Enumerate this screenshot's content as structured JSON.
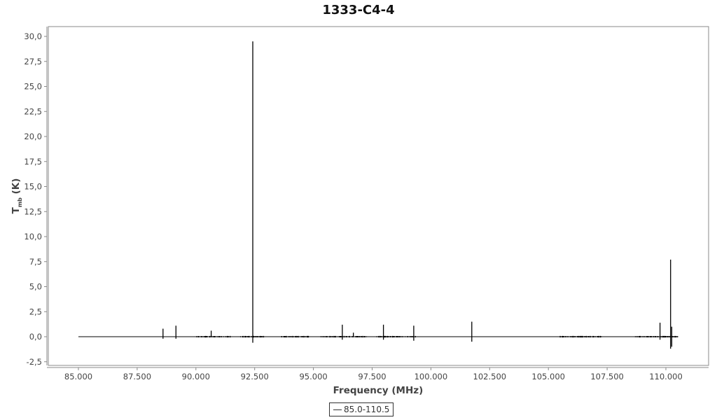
{
  "chart_data": {
    "type": "line",
    "title": "1333-C4-4",
    "xlabel": "Frequency (MHz)",
    "ylabel_main": "T",
    "ylabel_sub": "mb",
    "ylabel_unit": "(K)",
    "xlim": [
      84350,
      111900
    ],
    "ylim": [
      -2.75,
      31.0
    ],
    "xticks": [
      85000,
      87500,
      90000,
      92500,
      95000,
      97500,
      100000,
      102500,
      105000,
      107500,
      110000
    ],
    "xtick_labels": [
      "85.000",
      "87.500",
      "90.000",
      "92.500",
      "95.000",
      "97.500",
      "100.000",
      "102.500",
      "105.000",
      "107.500",
      "110.000"
    ],
    "yticks": [
      -2.5,
      0,
      2.5,
      5,
      7.5,
      10,
      12.5,
      15,
      17.5,
      20,
      22.5,
      25,
      27.5,
      30
    ],
    "ytick_labels": [
      "-2,5",
      "0,0",
      "2,5",
      "5,0",
      "7,5",
      "10,0",
      "12,5",
      "15,0",
      "17,5",
      "20,0",
      "22,5",
      "25,0",
      "27,5",
      "30,0"
    ],
    "grid": false,
    "legend_position": "bottom-center",
    "series": [
      {
        "name": "85.0-110.5",
        "color": "#000000",
        "range": [
          85000,
          110500
        ],
        "baseline": 0,
        "spikes": [
          {
            "x": 88600,
            "max": 0.8,
            "min": -0.2
          },
          {
            "x": 89150,
            "max": 1.1,
            "min": -0.2
          },
          {
            "x": 90650,
            "max": 0.6,
            "min": -0.05
          },
          {
            "x": 92420,
            "max": 29.5,
            "min": -0.6
          },
          {
            "x": 96230,
            "max": 1.2,
            "min": -0.3
          },
          {
            "x": 96700,
            "max": 0.4,
            "min": -0.05
          },
          {
            "x": 97980,
            "max": 1.2,
            "min": -0.3
          },
          {
            "x": 99270,
            "max": 1.1,
            "min": -0.4
          },
          {
            "x": 101740,
            "max": 1.5,
            "min": -0.5
          },
          {
            "x": 109750,
            "max": 1.4,
            "min": -0.3
          },
          {
            "x": 110200,
            "max": 7.7,
            "min": -1.2
          },
          {
            "x": 110250,
            "max": 1.0,
            "min": -1.0
          }
        ],
        "noise_regions": [
          [
            90000,
            91500
          ],
          [
            91900,
            92900
          ],
          [
            93600,
            94800
          ],
          [
            95300,
            97300
          ],
          [
            97700,
            99400
          ],
          [
            105500,
            107300
          ],
          [
            108700,
            110500
          ]
        ],
        "noise_amplitude": 0.08
      }
    ]
  }
}
